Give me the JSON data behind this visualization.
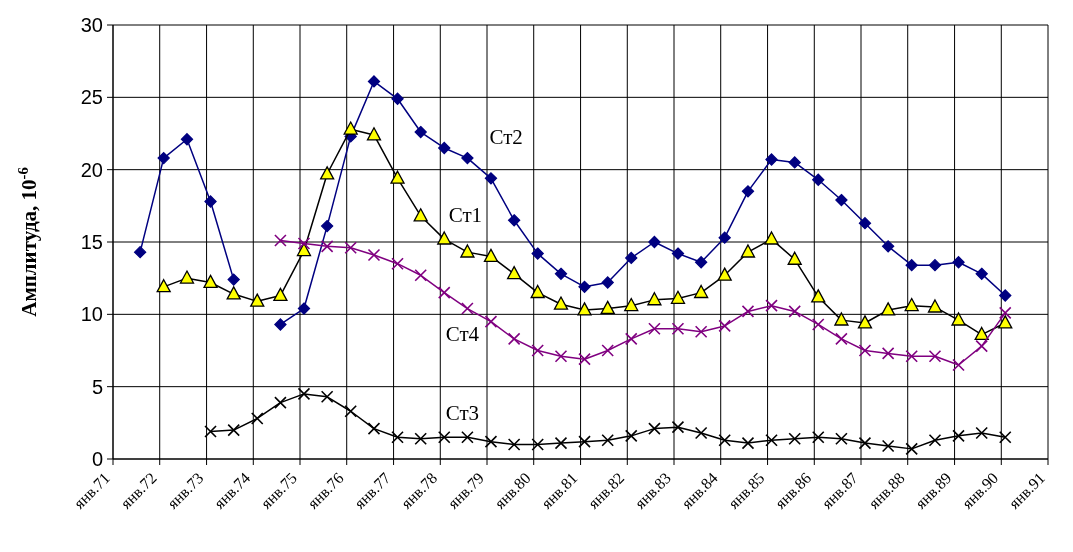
{
  "chart_data": {
    "type": "line",
    "ylabel": "Амплитуда, 10$^{-6}$",
    "xlim": [
      "1971-01",
      "1991-01"
    ],
    "xticks": [
      {
        "value": "1971-01",
        "label": "янв.71"
      },
      {
        "value": "1972-01",
        "label": "янв.72"
      },
      {
        "value": "1973-01",
        "label": "янв.73"
      },
      {
        "value": "1974-01",
        "label": "янв.74"
      },
      {
        "value": "1975-01",
        "label": "янв.75"
      },
      {
        "value": "1976-01",
        "label": "янв.76"
      },
      {
        "value": "1977-01",
        "label": "янв.77"
      },
      {
        "value": "1978-01",
        "label": "янв.78"
      },
      {
        "value": "1979-01",
        "label": "янв.79"
      },
      {
        "value": "1980-01",
        "label": "янв.80"
      },
      {
        "value": "1981-01",
        "label": "янв.81"
      },
      {
        "value": "1982-01",
        "label": "янв.82"
      },
      {
        "value": "1983-01",
        "label": "янв.83"
      },
      {
        "value": "1984-01",
        "label": "янв.84"
      },
      {
        "value": "1985-01",
        "label": "янв.85"
      },
      {
        "value": "1986-01",
        "label": "янв.86"
      },
      {
        "value": "1987-01",
        "label": "янв.87"
      },
      {
        "value": "1988-01",
        "label": "янв.88"
      },
      {
        "value": "1989-01",
        "label": "янв.89"
      },
      {
        "value": "1990-01",
        "label": "янв.90"
      },
      {
        "value": "1991-01",
        "label": "янв.91"
      }
    ],
    "ylim": [
      0,
      30
    ],
    "yticks": [
      0,
      5,
      10,
      15,
      20,
      25,
      30
    ],
    "grid": true,
    "series": [
      {
        "name": "Ст2",
        "color": "#000080",
        "marker": "diamond",
        "x": [
          "1971-08",
          "1972-02",
          "1972-08",
          "1973-02",
          "1973-08",
          "1974-02",
          "1974-08",
          "1975-02",
          "1975-08",
          "1976-02",
          "1976-08",
          "1977-02",
          "1977-08",
          "1978-02",
          "1978-08",
          "1979-02",
          "1979-08",
          "1980-02",
          "1980-08",
          "1981-02",
          "1981-08",
          "1982-02",
          "1982-08",
          "1983-02",
          "1983-08",
          "1984-02",
          "1984-08",
          "1985-02",
          "1985-08",
          "1986-02",
          "1986-08",
          "1987-02",
          "1987-08",
          "1988-02",
          "1988-08",
          "1989-02",
          "1989-08",
          "1990-02"
        ],
        "values": [
          14.3,
          20.8,
          22.1,
          17.8,
          12.4,
          null,
          9.3,
          10.4,
          16.1,
          22.3,
          26.1,
          24.9,
          22.6,
          21.5,
          20.8,
          19.4,
          16.5,
          14.2,
          12.8,
          11.9,
          12.2,
          13.9,
          15.0,
          14.2,
          13.6,
          15.3,
          18.5,
          20.7,
          20.5,
          19.3,
          17.9,
          16.3,
          14.7,
          13.4,
          13.4,
          13.6,
          12.8,
          11.3
        ]
      },
      {
        "name": "Ст1",
        "color": "#ffff00",
        "marker": "triangle",
        "x": [
          "1972-02",
          "1972-08",
          "1973-02",
          "1973-08",
          "1974-02",
          "1974-08",
          "1975-02",
          "1975-08",
          "1976-02",
          "1976-08",
          "1977-02",
          "1977-08",
          "1978-02",
          "1978-08",
          "1979-02",
          "1979-08",
          "1980-02",
          "1980-08",
          "1981-02",
          "1981-08",
          "1982-02",
          "1982-08",
          "1983-02",
          "1983-08",
          "1984-02",
          "1984-08",
          "1985-02",
          "1985-08",
          "1986-02",
          "1986-08",
          "1987-02",
          "1987-08",
          "1988-02",
          "1988-08",
          "1989-02",
          "1989-08",
          "1990-02"
        ],
        "values": [
          11.9,
          12.5,
          12.2,
          11.4,
          10.9,
          11.3,
          14.4,
          19.7,
          22.8,
          22.4,
          19.4,
          16.8,
          15.2,
          14.3,
          14.0,
          12.8,
          11.5,
          10.7,
          10.3,
          10.4,
          10.6,
          11.0,
          11.1,
          11.5,
          12.7,
          14.3,
          15.2,
          13.8,
          11.2,
          9.6,
          9.4,
          10.3,
          10.6,
          10.5,
          9.6,
          8.6,
          9.4
        ]
      },
      {
        "name": "Ст4",
        "color": "#800080",
        "marker": "cross",
        "x": [
          "1974-08",
          "1975-02",
          "1975-08",
          "1976-02",
          "1976-08",
          "1977-02",
          "1977-08",
          "1978-02",
          "1978-08",
          "1979-02",
          "1979-08",
          "1980-02",
          "1980-08",
          "1981-02",
          "1981-08",
          "1982-02",
          "1982-08",
          "1983-02",
          "1983-08",
          "1984-02",
          "1984-08",
          "1985-02",
          "1985-08",
          "1986-02",
          "1986-08",
          "1987-02",
          "1987-08",
          "1988-02",
          "1988-08",
          "1989-02",
          "1989-08",
          "1990-02"
        ],
        "values": [
          15.1,
          14.9,
          14.7,
          14.6,
          14.1,
          13.5,
          12.7,
          11.5,
          10.4,
          9.5,
          8.3,
          7.5,
          7.1,
          6.9,
          7.5,
          8.3,
          9.0,
          9.0,
          8.8,
          9.2,
          10.2,
          10.6,
          10.2,
          9.3,
          8.3,
          7.5,
          7.3,
          7.1,
          7.1,
          6.5,
          7.8,
          10.1
        ]
      },
      {
        "name": "Ст3",
        "color": "#000000",
        "marker": "cross",
        "x": [
          "1973-02",
          "1973-08",
          "1974-02",
          "1974-08",
          "1975-02",
          "1975-08",
          "1976-02",
          "1976-08",
          "1977-02",
          "1977-08",
          "1978-02",
          "1978-08",
          "1979-02",
          "1979-08",
          "1980-02",
          "1980-08",
          "1981-02",
          "1981-08",
          "1982-02",
          "1982-08",
          "1983-02",
          "1983-08",
          "1984-02",
          "1984-08",
          "1985-02",
          "1985-08",
          "1986-02",
          "1986-08",
          "1987-02",
          "1987-08",
          "1988-02",
          "1988-08",
          "1989-02",
          "1989-08",
          "1990-02"
        ],
        "values": [
          1.9,
          2.0,
          2.8,
          3.9,
          4.5,
          4.3,
          3.3,
          2.1,
          1.5,
          1.4,
          1.5,
          1.5,
          1.2,
          1.0,
          1.0,
          1.1,
          1.2,
          1.3,
          1.6,
          2.1,
          2.2,
          1.8,
          1.3,
          1.1,
          1.3,
          1.4,
          1.5,
          1.4,
          1.1,
          0.9,
          0.7,
          1.3,
          1.6,
          1.8,
          1.5
        ]
      }
    ]
  }
}
